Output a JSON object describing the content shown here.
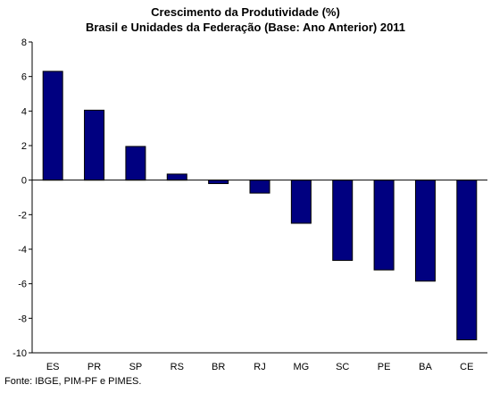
{
  "chart_data": {
    "type": "bar",
    "title": "Crescimento da Produtividade (%)",
    "subtitle": "Brasil e Unidades da Federação (Base: Ano Anterior) 2011",
    "categories": [
      "ES",
      "PR",
      "SP",
      "RS",
      "BR",
      "RJ",
      "MG",
      "SC",
      "PE",
      "BA",
      "CE"
    ],
    "values": [
      6.3,
      4.05,
      1.95,
      0.35,
      -0.2,
      -0.75,
      -2.5,
      -4.65,
      -5.2,
      -5.85,
      -9.25
    ],
    "ylim": [
      -10,
      8
    ],
    "yticks": [
      "8",
      "6",
      "4",
      "2",
      "0",
      "-2",
      "-4",
      "-6",
      "-8",
      "-10"
    ],
    "xlabel": "",
    "ylabel": "",
    "grid": false,
    "bar_color": "#000080"
  },
  "source": "Fonte: IBGE, PIM-PF e PIMES."
}
